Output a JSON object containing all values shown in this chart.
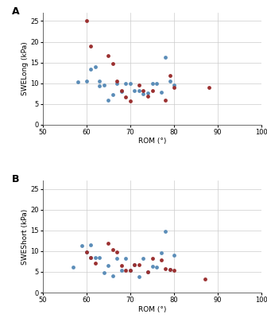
{
  "panel_A": {
    "label": "A",
    "ylabel": "SWELong (kPa)",
    "xlabel": "ROM (°)",
    "xlim": [
      50,
      100
    ],
    "ylim": [
      0,
      27
    ],
    "xticks": [
      50,
      60,
      70,
      80,
      90,
      100
    ],
    "yticks": [
      0,
      5,
      10,
      15,
      20,
      25
    ],
    "blue_x": [
      58,
      60,
      61,
      62,
      63,
      63,
      64,
      65,
      66,
      67,
      68,
      69,
      70,
      71,
      72,
      73,
      74,
      75,
      76,
      77,
      78,
      79,
      80
    ],
    "blue_y": [
      10.3,
      10.5,
      13.3,
      14.0,
      9.3,
      10.5,
      9.5,
      6.0,
      7.2,
      10.0,
      8.0,
      10.0,
      10.0,
      8.3,
      8.3,
      7.5,
      7.7,
      10.0,
      10.0,
      7.8,
      16.2,
      10.5,
      9.5
    ],
    "red_x": [
      60,
      61,
      65,
      66,
      67,
      68,
      69,
      70,
      72,
      73,
      74,
      75,
      78,
      79,
      80,
      88
    ],
    "red_y": [
      25.0,
      19.0,
      16.6,
      14.7,
      10.5,
      8.3,
      6.7,
      5.8,
      9.5,
      8.3,
      6.8,
      8.3,
      6.0,
      11.8,
      9.0,
      9.0
    ]
  },
  "panel_B": {
    "label": "B",
    "ylabel": "SWEShort (kPa)",
    "xlabel": "ROM (°)",
    "xlim": [
      50,
      100
    ],
    "ylim": [
      0,
      27
    ],
    "xticks": [
      50,
      60,
      70,
      80,
      90,
      100
    ],
    "yticks": [
      0,
      5,
      10,
      15,
      20,
      25
    ],
    "blue_x": [
      57,
      59,
      60,
      61,
      61,
      62,
      63,
      64,
      65,
      66,
      67,
      68,
      69,
      70,
      71,
      72,
      73,
      74,
      75,
      76,
      77,
      78,
      79,
      80
    ],
    "blue_y": [
      6.1,
      11.3,
      9.7,
      8.5,
      11.5,
      8.4,
      8.4,
      4.7,
      6.5,
      4.0,
      8.2,
      5.3,
      8.3,
      5.3,
      6.7,
      3.8,
      8.2,
      5.0,
      6.3,
      6.2,
      9.5,
      14.8,
      5.6,
      9.1
    ],
    "red_x": [
      60,
      61,
      62,
      65,
      66,
      67,
      68,
      69,
      70,
      71,
      72,
      74,
      75,
      77,
      78,
      79,
      80,
      87
    ],
    "red_y": [
      9.8,
      8.5,
      7.0,
      11.9,
      10.3,
      9.7,
      6.5,
      5.4,
      5.3,
      6.8,
      6.8,
      5.0,
      8.2,
      7.9,
      5.7,
      5.5,
      5.4,
      3.3
    ]
  },
  "blue_color": "#5b8db8",
  "red_color": "#9b3030",
  "marker_size": 12,
  "bg_color": "#ffffff",
  "grid_color": "#cccccc",
  "label_fontsize": 6.5,
  "tick_fontsize": 6,
  "panel_label_fontsize": 9
}
